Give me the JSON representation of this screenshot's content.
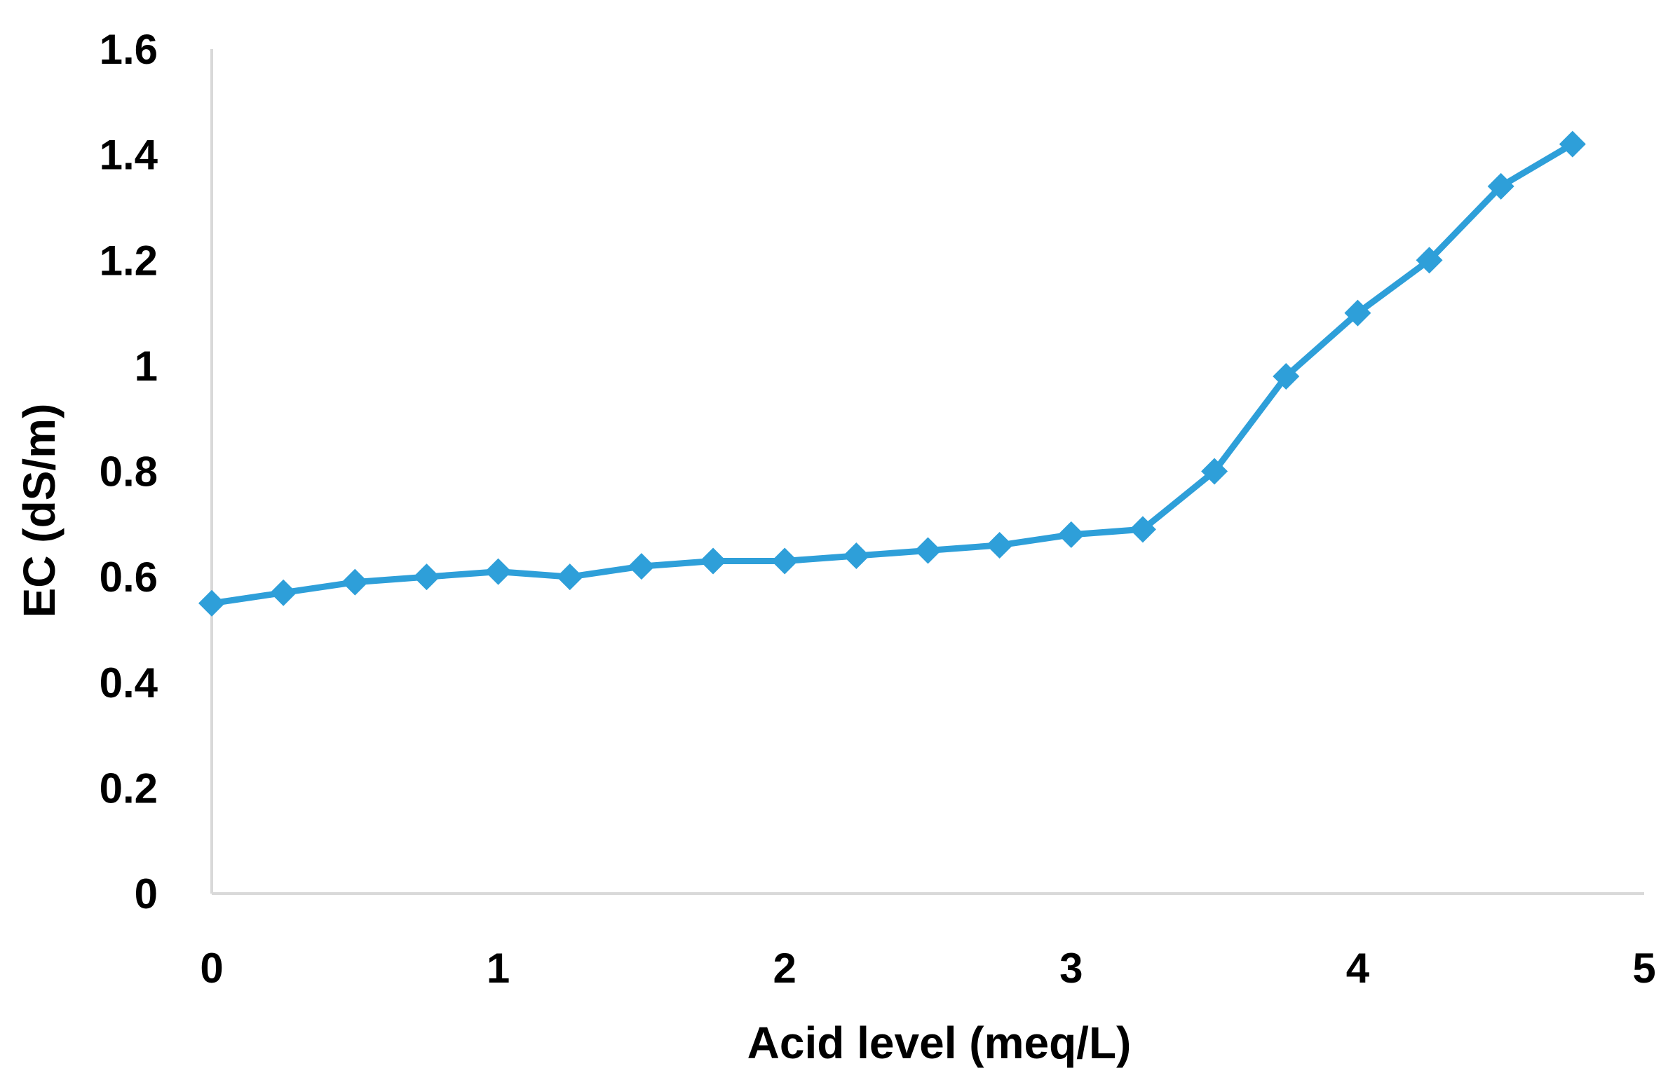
{
  "chart_data": {
    "type": "line",
    "title": "",
    "xlabel": "Acid level (meq/L)",
    "ylabel": "EC (dS/m)",
    "xlim": [
      0,
      5
    ],
    "ylim": [
      0,
      1.6
    ],
    "x_ticks": [
      "0",
      "1",
      "2",
      "3",
      "4",
      "5"
    ],
    "y_ticks": [
      "0",
      "0.2",
      "0.4",
      "0.6",
      "0.8",
      "1",
      "1.2",
      "1.4",
      "1.6"
    ],
    "grid": false,
    "legend": "none",
    "series": [
      {
        "color": "#2E9FD9",
        "marker": "diamond",
        "x": [
          0,
          0.25,
          0.5,
          0.75,
          1,
          1.25,
          1.5,
          1.75,
          2,
          2.25,
          2.5,
          2.75,
          3,
          3.25,
          3.5,
          3.75,
          4,
          4.25,
          4.5,
          4.75
        ],
        "y": [
          0.55,
          0.57,
          0.59,
          0.6,
          0.61,
          0.6,
          0.62,
          0.63,
          0.63,
          0.64,
          0.65,
          0.66,
          0.68,
          0.69,
          0.8,
          0.98,
          1.1,
          1.2,
          1.34,
          1.42
        ]
      }
    ]
  }
}
